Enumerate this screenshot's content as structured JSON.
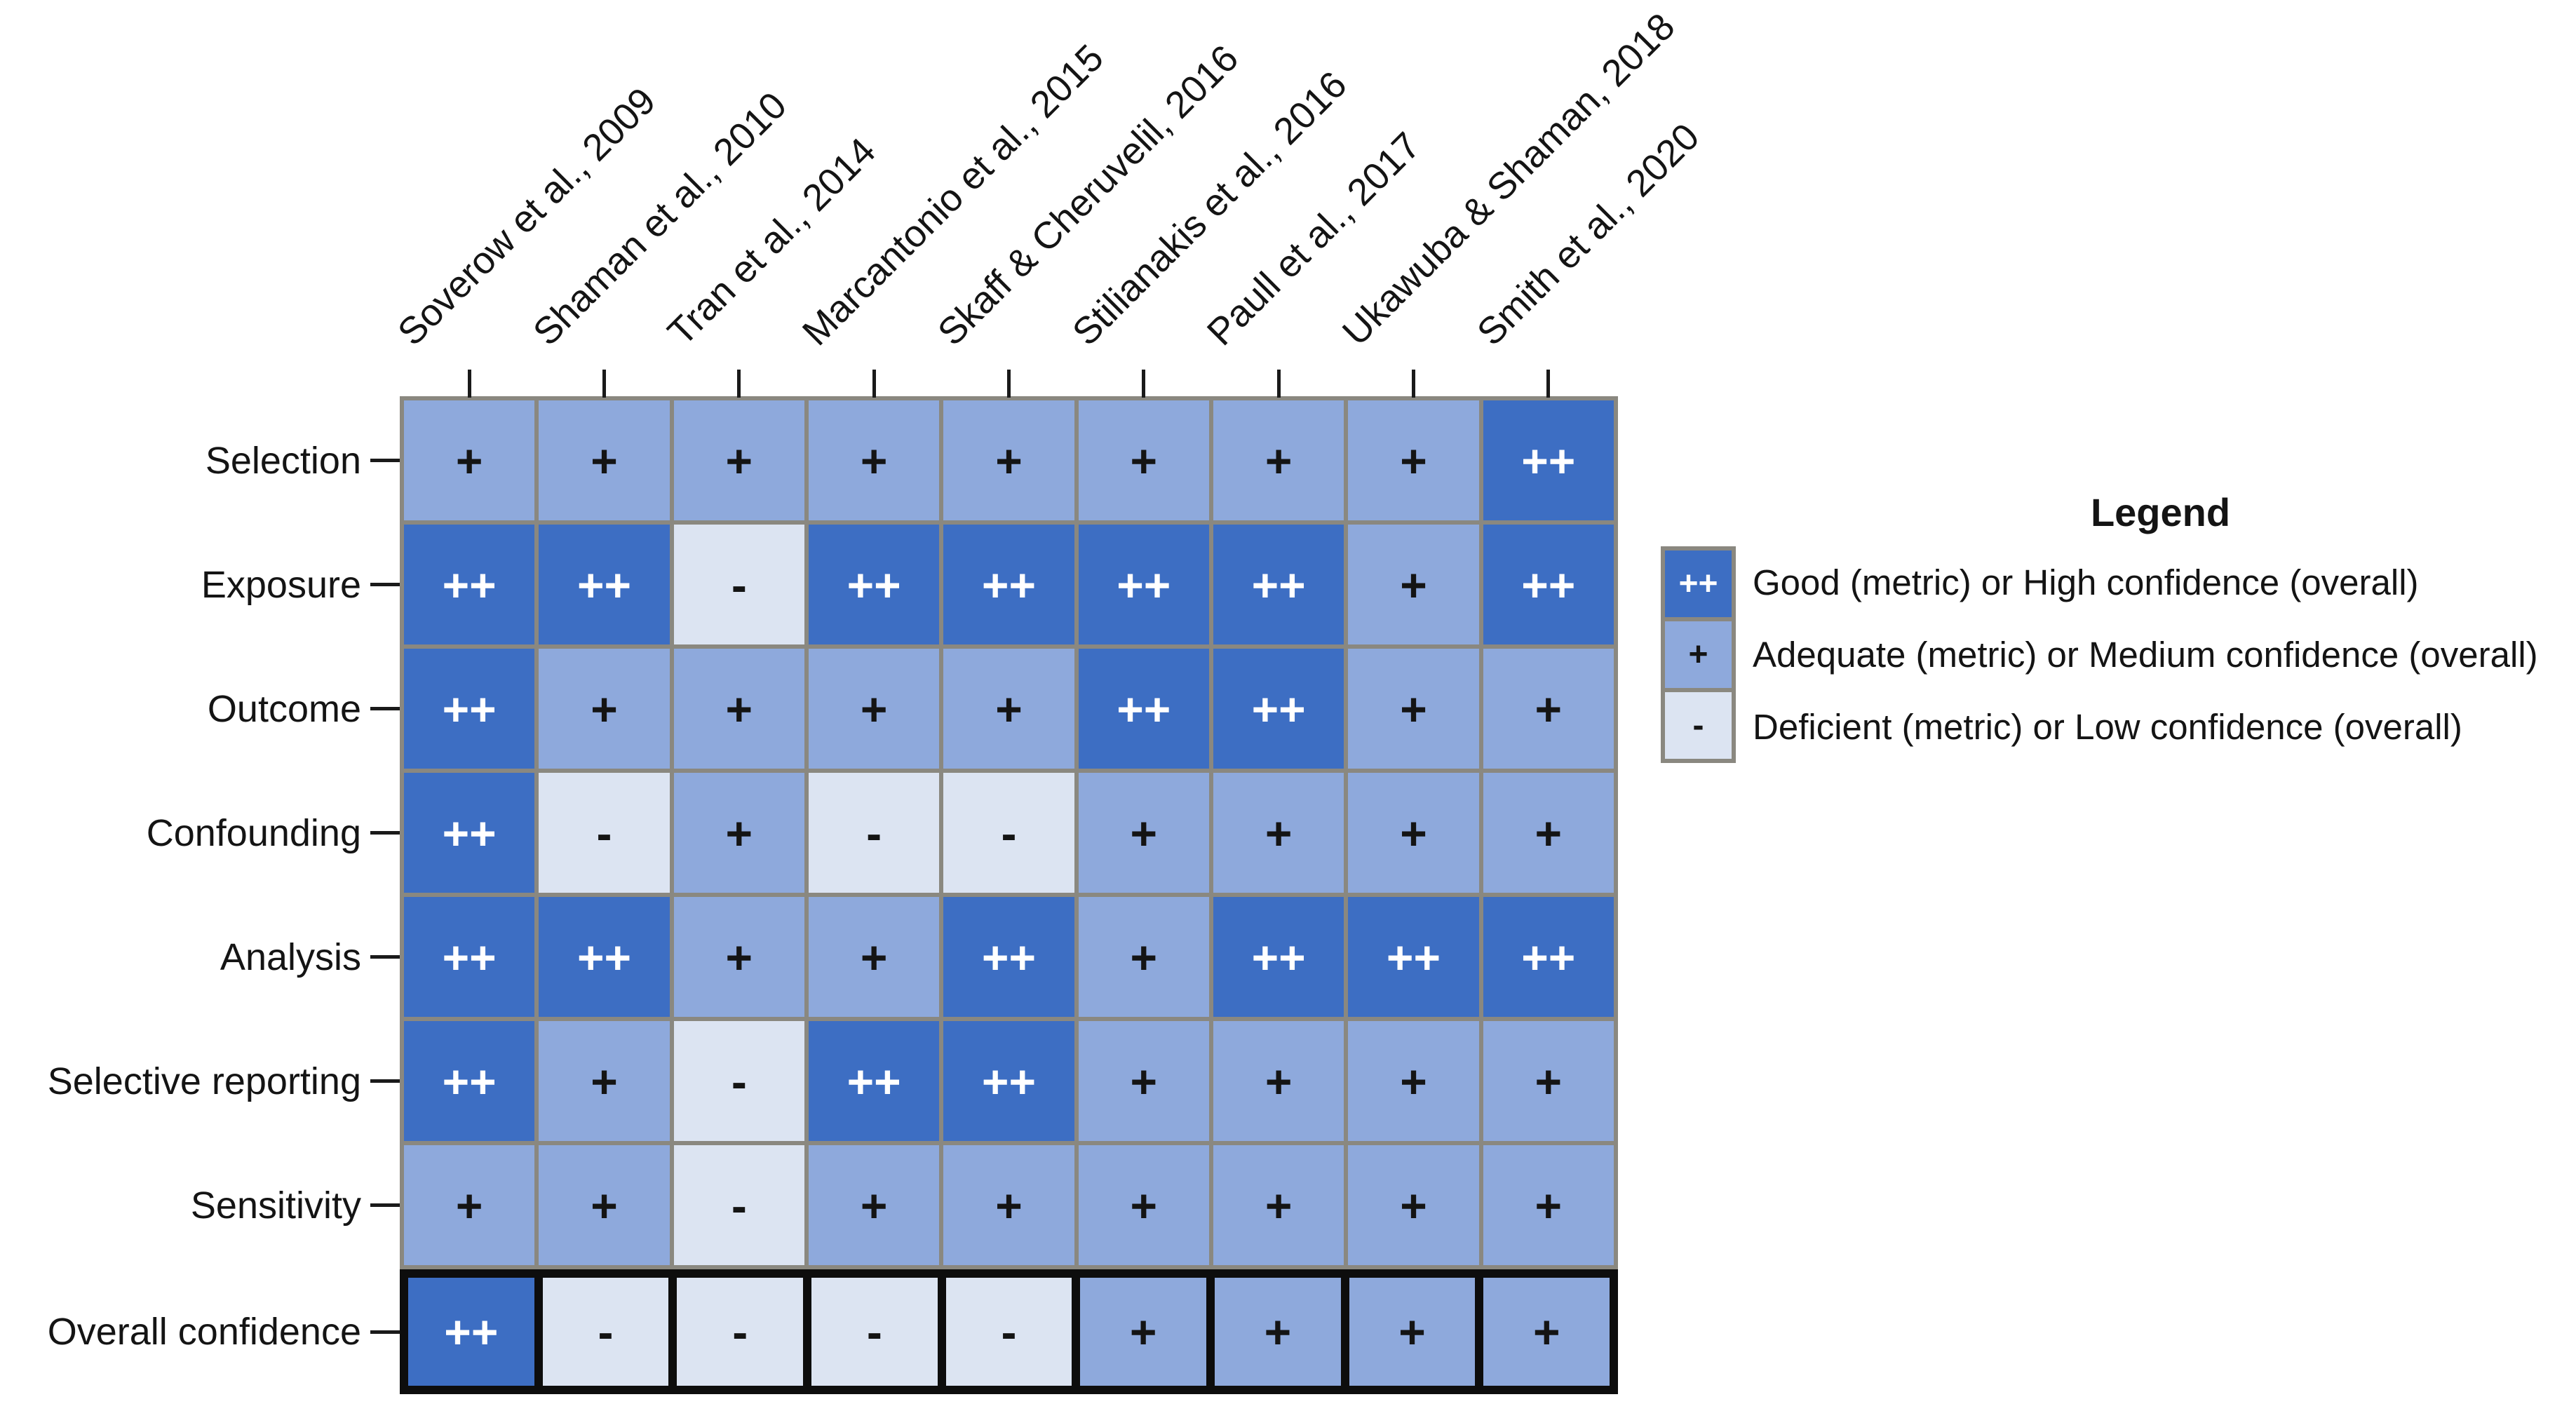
{
  "chart_data": {
    "type": "heatmap",
    "columns": [
      "Soverow et al., 2009",
      "Shaman et al., 2010",
      "Tran et al., 2014",
      "Marcantonio et al., 2015",
      "Skaff & Cheruvelil, 2016",
      "Stilianakis et al., 2016",
      "Paull et al., 2017",
      "Ukawuba & Shaman, 2018",
      "Smith et al., 2020"
    ],
    "rows": [
      "Selection",
      "Exposure",
      "Outcome",
      "Confounding",
      "Analysis",
      "Selective reporting",
      "Sensitivity",
      "Overall confidence"
    ],
    "values": [
      [
        "+",
        "+",
        "+",
        "+",
        "+",
        "+",
        "+",
        "+",
        "++"
      ],
      [
        "++",
        "++",
        "-",
        "++",
        "++",
        "++",
        "++",
        "+",
        "++"
      ],
      [
        "++",
        "+",
        "+",
        "+",
        "+",
        "++",
        "++",
        "+",
        "+"
      ],
      [
        "++",
        "-",
        "+",
        "-",
        "-",
        "+",
        "+",
        "+",
        "+"
      ],
      [
        "++",
        "++",
        "+",
        "+",
        "++",
        "+",
        "++",
        "++",
        "++"
      ],
      [
        "++",
        "+",
        "-",
        "++",
        "++",
        "+",
        "+",
        "+",
        "+"
      ],
      [
        "+",
        "+",
        "-",
        "+",
        "+",
        "+",
        "+",
        "+",
        "+"
      ],
      [
        "++",
        "-",
        "-",
        "-",
        "-",
        "+",
        "+",
        "+",
        "+"
      ]
    ],
    "legend": {
      "title": "Legend",
      "entries": [
        {
          "symbol": "++",
          "label": "Good (metric) or High confidence (overall)"
        },
        {
          "symbol": "+",
          "label": "Adequate (metric) or Medium confidence (overall)"
        },
        {
          "symbol": "-",
          "label": "Deficient (metric) or Low confidence (overall)"
        }
      ]
    },
    "colors": {
      "good": "#3d6ec3",
      "adequate": "#8ea9dc",
      "deficient": "#dce4f2",
      "grid": "#8a8880",
      "overall_border": "#0d0d0d",
      "symbol_on_dark": "#ffffff",
      "symbol_on_light": "#141414"
    },
    "layout": {
      "legend_position": "right",
      "column_labels_rotated_deg": 45,
      "highlighted_row": "Overall confidence"
    }
  }
}
